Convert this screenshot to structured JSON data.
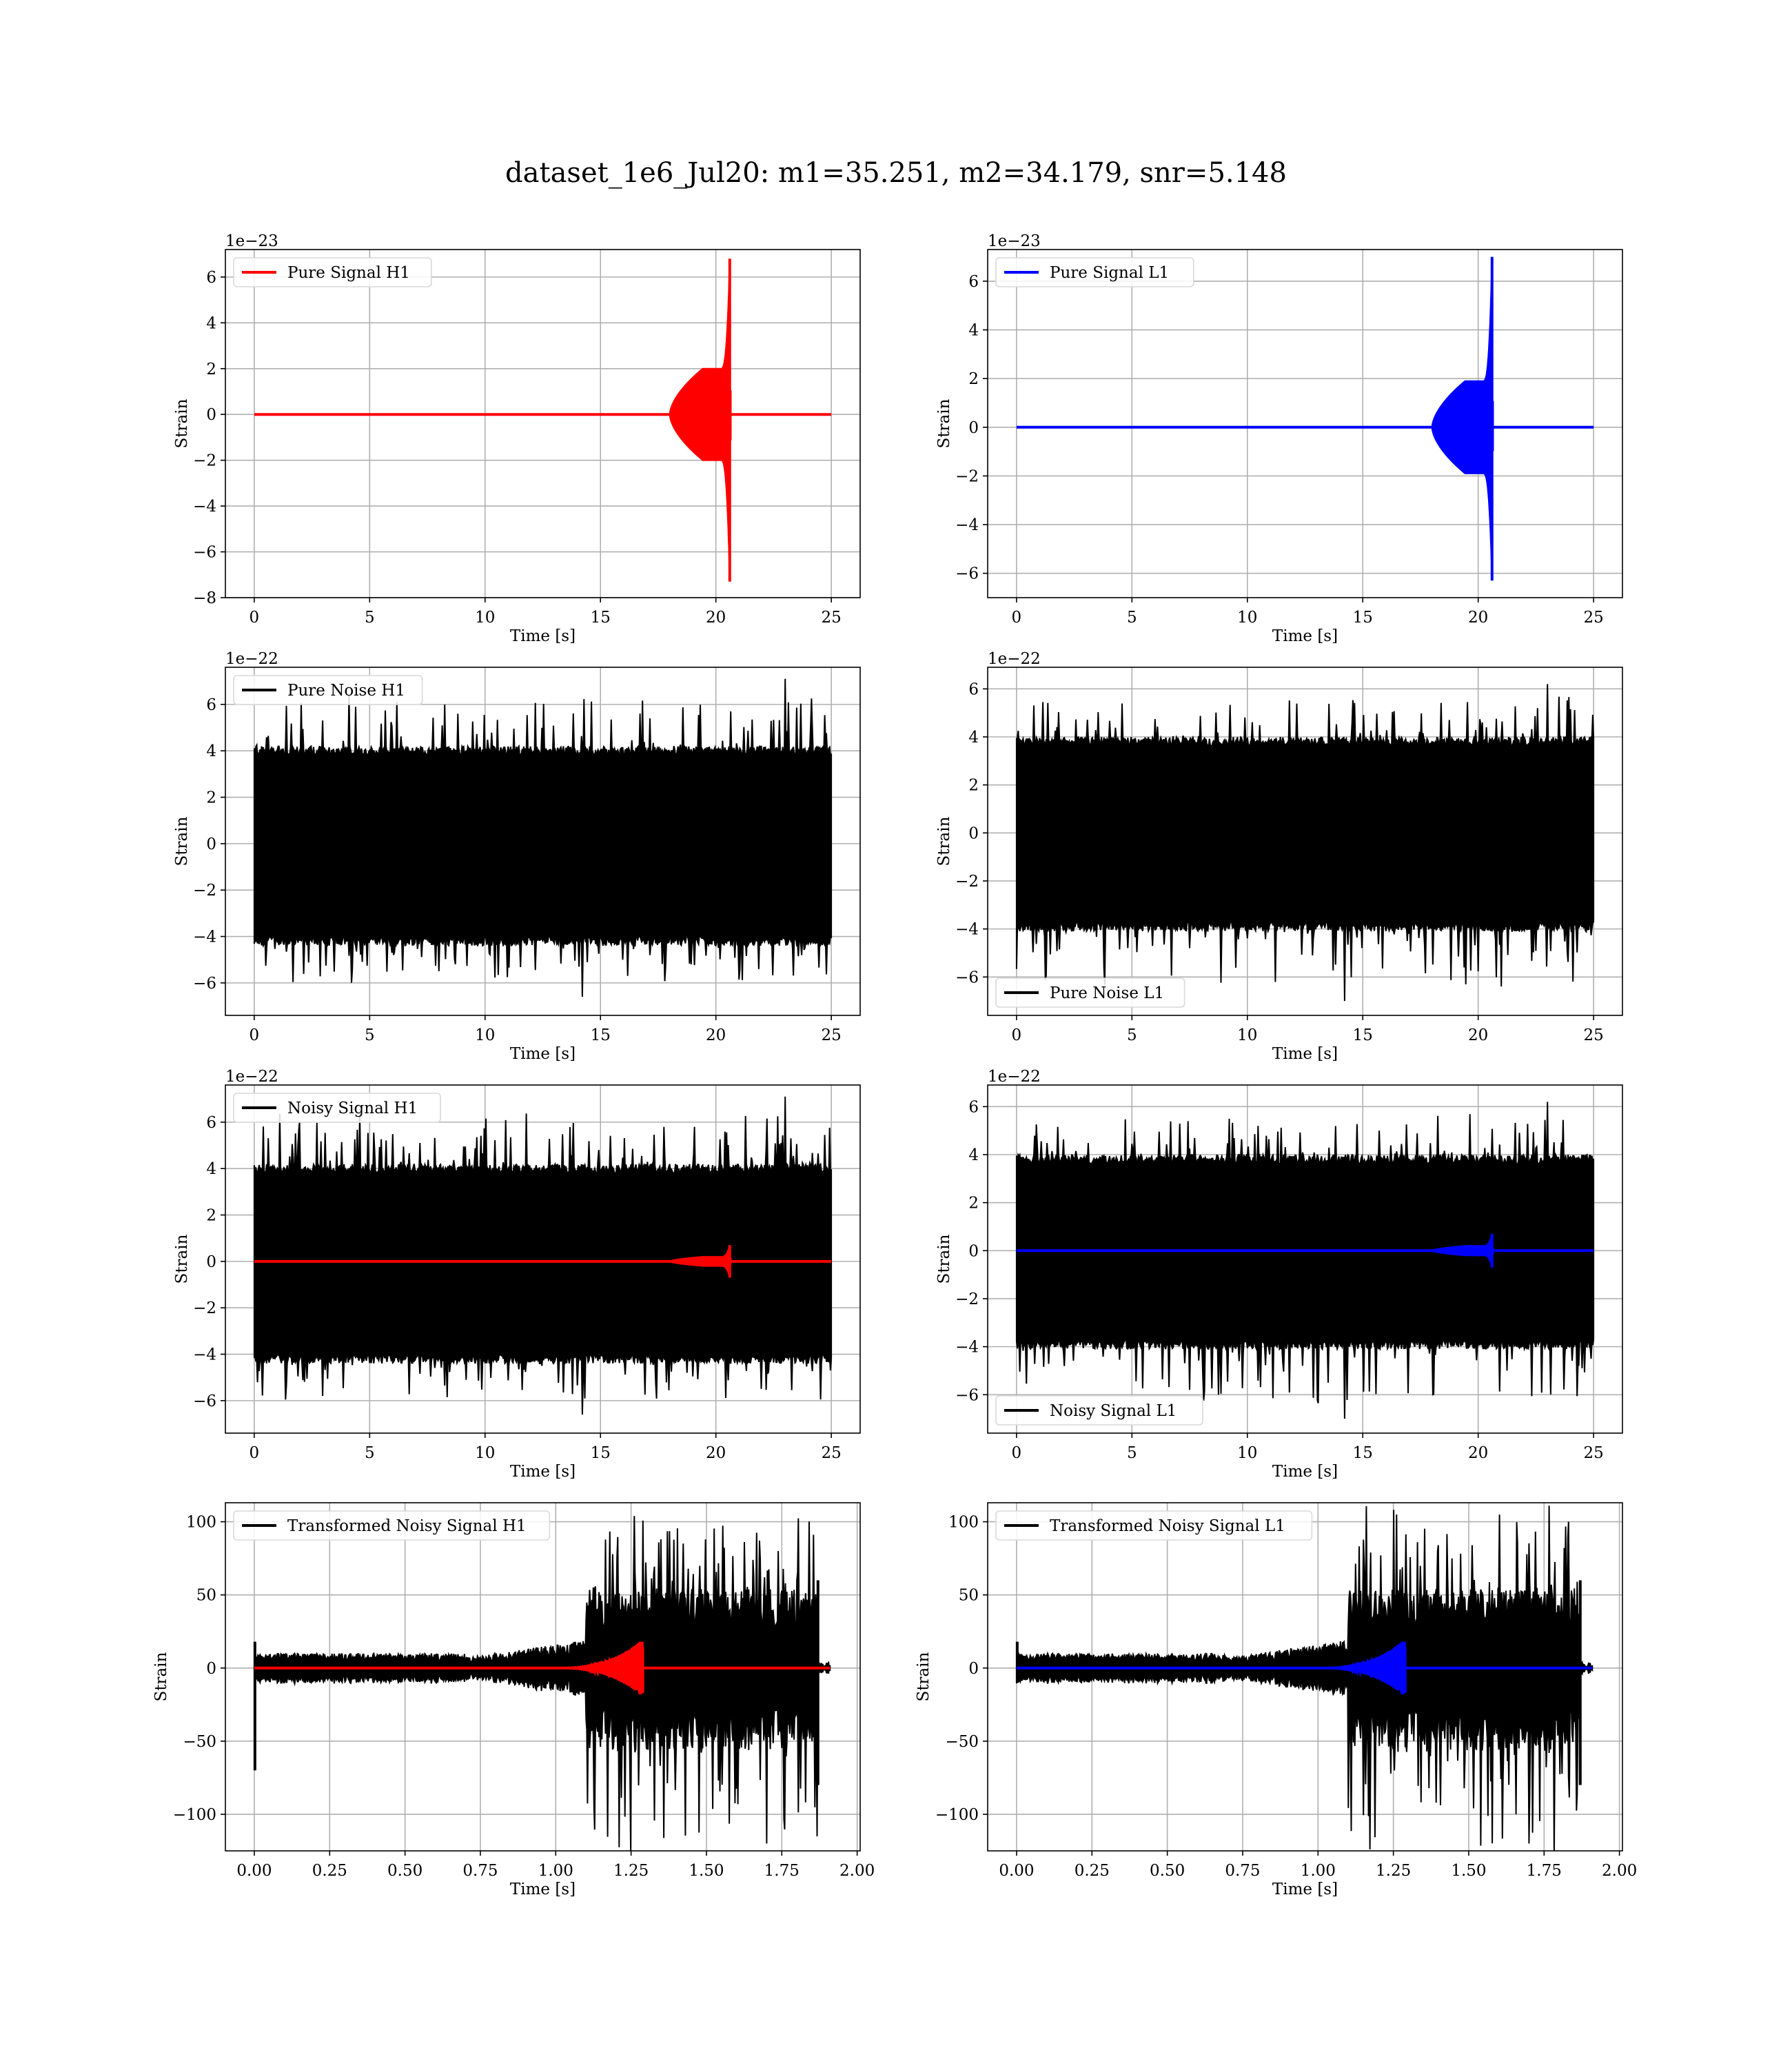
{
  "figure": {
    "suptitle": "dataset_1e6_Jul20: m1=35.251, m2=34.179, snr=5.148"
  },
  "chart_data": [
    {
      "type": "line",
      "panel": "pure-signal-h1",
      "ylabel": "Strain",
      "xlabel": "Time [s]",
      "offset_text": "1e−23",
      "xlim": [
        -1.25,
        26.25
      ],
      "ylim": [
        -8,
        7.2
      ],
      "xticks": [
        0,
        5,
        10,
        15,
        20,
        25
      ],
      "yticks": [
        -8,
        -6,
        -4,
        -2,
        0,
        2,
        4,
        6
      ],
      "legend_position": "upper-left",
      "grid": true,
      "series": [
        {
          "name": "Pure Signal H1",
          "color": "#ff0000",
          "kind": "chirp",
          "t_start": 0,
          "t_end": 25,
          "t_merge": 20.6,
          "inspiral_start": 18.0,
          "plateau": 2.0,
          "peak_pos": 6.8,
          "peak_neg": -7.3
        }
      ]
    },
    {
      "type": "line",
      "panel": "pure-signal-l1",
      "ylabel": "Strain",
      "xlabel": "Time [s]",
      "offset_text": "1e−23",
      "xlim": [
        -1.25,
        26.25
      ],
      "ylim": [
        -7,
        7.3
      ],
      "xticks": [
        0,
        5,
        10,
        15,
        20,
        25
      ],
      "yticks": [
        -6,
        -4,
        -2,
        0,
        2,
        4,
        6
      ],
      "legend_position": "upper-left",
      "grid": true,
      "series": [
        {
          "name": "Pure Signal L1",
          "color": "#0000ff",
          "kind": "chirp",
          "t_start": 0,
          "t_end": 25,
          "t_merge": 20.6,
          "inspiral_start": 18.0,
          "plateau": 1.9,
          "peak_pos": 7.0,
          "peak_neg": -6.3
        }
      ]
    },
    {
      "type": "line",
      "panel": "pure-noise-h1",
      "ylabel": "Strain",
      "xlabel": "Time [s]",
      "offset_text": "1e−22",
      "xlim": [
        -1.25,
        26.25
      ],
      "ylim": [
        -7.4,
        7.6
      ],
      "xticks": [
        0,
        5,
        10,
        15,
        20,
        25
      ],
      "yticks": [
        -6,
        -4,
        -2,
        0,
        2,
        4,
        6
      ],
      "legend_position": "upper-left",
      "grid": true,
      "series": [
        {
          "name": "Pure Noise H1",
          "color": "#000000",
          "kind": "noise",
          "t_start": 0,
          "t_end": 25,
          "amp_pos": 4.2,
          "amp_neg": -4.4,
          "max": 7.1,
          "min": -6.6
        }
      ]
    },
    {
      "type": "line",
      "panel": "pure-noise-l1",
      "ylabel": "Strain",
      "xlabel": "Time [s]",
      "offset_text": "1e−22",
      "xlim": [
        -1.25,
        26.25
      ],
      "ylim": [
        -7.6,
        6.9
      ],
      "xticks": [
        0,
        5,
        10,
        15,
        20,
        25
      ],
      "yticks": [
        -6,
        -4,
        -2,
        0,
        2,
        4,
        6
      ],
      "legend_position": "lower-left",
      "grid": true,
      "series": [
        {
          "name": "Pure Noise L1",
          "color": "#000000",
          "kind": "noise",
          "t_start": 0,
          "t_end": 25,
          "amp_pos": 4.0,
          "amp_neg": -4.1,
          "max": 6.2,
          "min": -7.0
        }
      ]
    },
    {
      "type": "line",
      "panel": "noisy-signal-h1",
      "ylabel": "Strain",
      "xlabel": "Time [s]",
      "offset_text": "1e−22",
      "xlim": [
        -1.25,
        26.25
      ],
      "ylim": [
        -7.4,
        7.6
      ],
      "xticks": [
        0,
        5,
        10,
        15,
        20,
        25
      ],
      "yticks": [
        -6,
        -4,
        -2,
        0,
        2,
        4,
        6
      ],
      "legend_position": "upper-left",
      "grid": true,
      "series": [
        {
          "name": "Noisy Signal H1",
          "color": "#000000",
          "kind": "noise",
          "t_start": 0,
          "t_end": 25,
          "amp_pos": 4.2,
          "amp_neg": -4.4,
          "max": 7.1,
          "min": -6.6
        },
        {
          "name": "",
          "color": "#ff0000",
          "kind": "chirp",
          "t_start": 0,
          "t_end": 25,
          "t_merge": 20.6,
          "inspiral_start": 18.0,
          "plateau": 0.2,
          "peak_pos": 0.7,
          "peak_neg": -0.7
        }
      ]
    },
    {
      "type": "line",
      "panel": "noisy-signal-l1",
      "ylabel": "Strain",
      "xlabel": "Time [s]",
      "offset_text": "1e−22",
      "xlim": [
        -1.25,
        26.25
      ],
      "ylim": [
        -7.6,
        6.9
      ],
      "xticks": [
        0,
        5,
        10,
        15,
        20,
        25
      ],
      "yticks": [
        -6,
        -4,
        -2,
        0,
        2,
        4,
        6
      ],
      "legend_position": "lower-left",
      "grid": true,
      "series": [
        {
          "name": "Noisy Signal L1",
          "color": "#000000",
          "kind": "noise",
          "t_start": 0,
          "t_end": 25,
          "amp_pos": 4.0,
          "amp_neg": -4.1,
          "max": 6.2,
          "min": -7.0
        },
        {
          "name": "",
          "color": "#0000ff",
          "kind": "chirp",
          "t_start": 0,
          "t_end": 25,
          "t_merge": 20.6,
          "inspiral_start": 18.0,
          "plateau": 0.2,
          "peak_pos": 0.7,
          "peak_neg": -0.7
        }
      ]
    },
    {
      "type": "line",
      "panel": "transformed-noisy-signal-h1",
      "ylabel": "Strain",
      "xlabel": "Time [s]",
      "offset_text": "",
      "xlim": [
        -0.096,
        2.01
      ],
      "ylim": [
        -125,
        113
      ],
      "xticks": [
        0.0,
        0.25,
        0.5,
        0.75,
        1.0,
        1.25,
        1.5,
        1.75,
        2.0
      ],
      "xtick_labels": [
        "0.00",
        "0.25",
        "0.50",
        "0.75",
        "1.00",
        "1.25",
        "1.50",
        "1.75",
        "2.00"
      ],
      "yticks": [
        -100,
        -50,
        0,
        50,
        100
      ],
      "legend_position": "upper-left",
      "grid": true,
      "series": [
        {
          "name": "Transformed Noisy Signal H1",
          "color": "#000000",
          "kind": "transformed-noise",
          "t_start": 0,
          "t_end": 1.91,
          "t_burst": 1.1,
          "t_cut": 1.87,
          "amp_low": 10,
          "amp_high": 45,
          "max": 104,
          "min": -120,
          "initial_spike": -70
        },
        {
          "name": "",
          "color": "#ff0000",
          "kind": "transformed-chirp",
          "t_start": 0,
          "t_end": 1.91,
          "t_merge": 1.28,
          "chirp_start": 1.0,
          "peak": 18
        }
      ]
    },
    {
      "type": "line",
      "panel": "transformed-noisy-signal-l1",
      "ylabel": "Strain",
      "xlabel": "Time [s]",
      "offset_text": "",
      "xlim": [
        -0.096,
        2.01
      ],
      "ylim": [
        -125,
        113
      ],
      "xticks": [
        0.0,
        0.25,
        0.5,
        0.75,
        1.0,
        1.25,
        1.5,
        1.75,
        2.0
      ],
      "xtick_labels": [
        "0.00",
        "0.25",
        "0.50",
        "0.75",
        "1.00",
        "1.25",
        "1.50",
        "1.75",
        "2.00"
      ],
      "yticks": [
        -100,
        -50,
        0,
        50,
        100
      ],
      "legend_position": "upper-left",
      "grid": true,
      "series": [
        {
          "name": "Transformed Noisy Signal L1",
          "color": "#000000",
          "kind": "transformed-noise",
          "t_start": 0,
          "t_end": 1.91,
          "t_burst": 1.1,
          "t_cut": 1.87,
          "amp_low": 10,
          "amp_high": 45,
          "max": 105,
          "min": -120,
          "initial_spike": -10
        },
        {
          "name": "",
          "color": "#0000ff",
          "kind": "transformed-chirp",
          "t_start": 0,
          "t_end": 1.91,
          "t_merge": 1.28,
          "chirp_start": 1.0,
          "peak": 18
        }
      ]
    }
  ]
}
